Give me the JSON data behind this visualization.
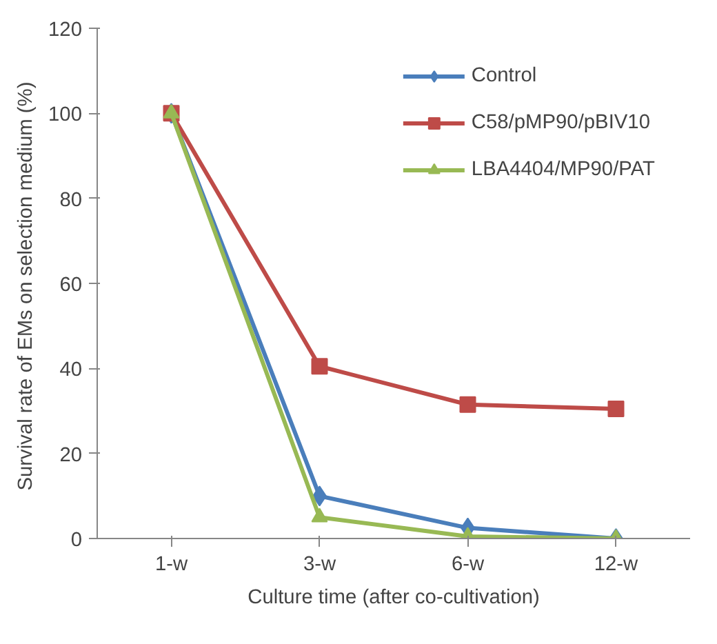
{
  "chart_data": {
    "type": "line",
    "xlabel": "Culture time (after co-cultivation)",
    "ylabel": "Survival  rate of EMs on selection medium (%)",
    "categories": [
      "1-w",
      "3-w",
      "6-w",
      "12-w"
    ],
    "ylim": [
      0,
      120
    ],
    "yticks": [
      0,
      20,
      40,
      60,
      80,
      100,
      120
    ],
    "grid": false,
    "legend": "top right",
    "series": [
      {
        "name": "Control",
        "color": "#4a7ebb",
        "marker": "diamond",
        "values": [
          100,
          10,
          2.5,
          0
        ]
      },
      {
        "name": "C58/pMP90/pBIV10",
        "color": "#be4b48",
        "marker": "square",
        "values": [
          100,
          40.5,
          31.5,
          30.5
        ]
      },
      {
        "name": "LBA4404/MP90/PAT",
        "color": "#98b954",
        "marker": "triangle",
        "values": [
          100,
          5,
          0.5,
          0
        ]
      }
    ]
  }
}
